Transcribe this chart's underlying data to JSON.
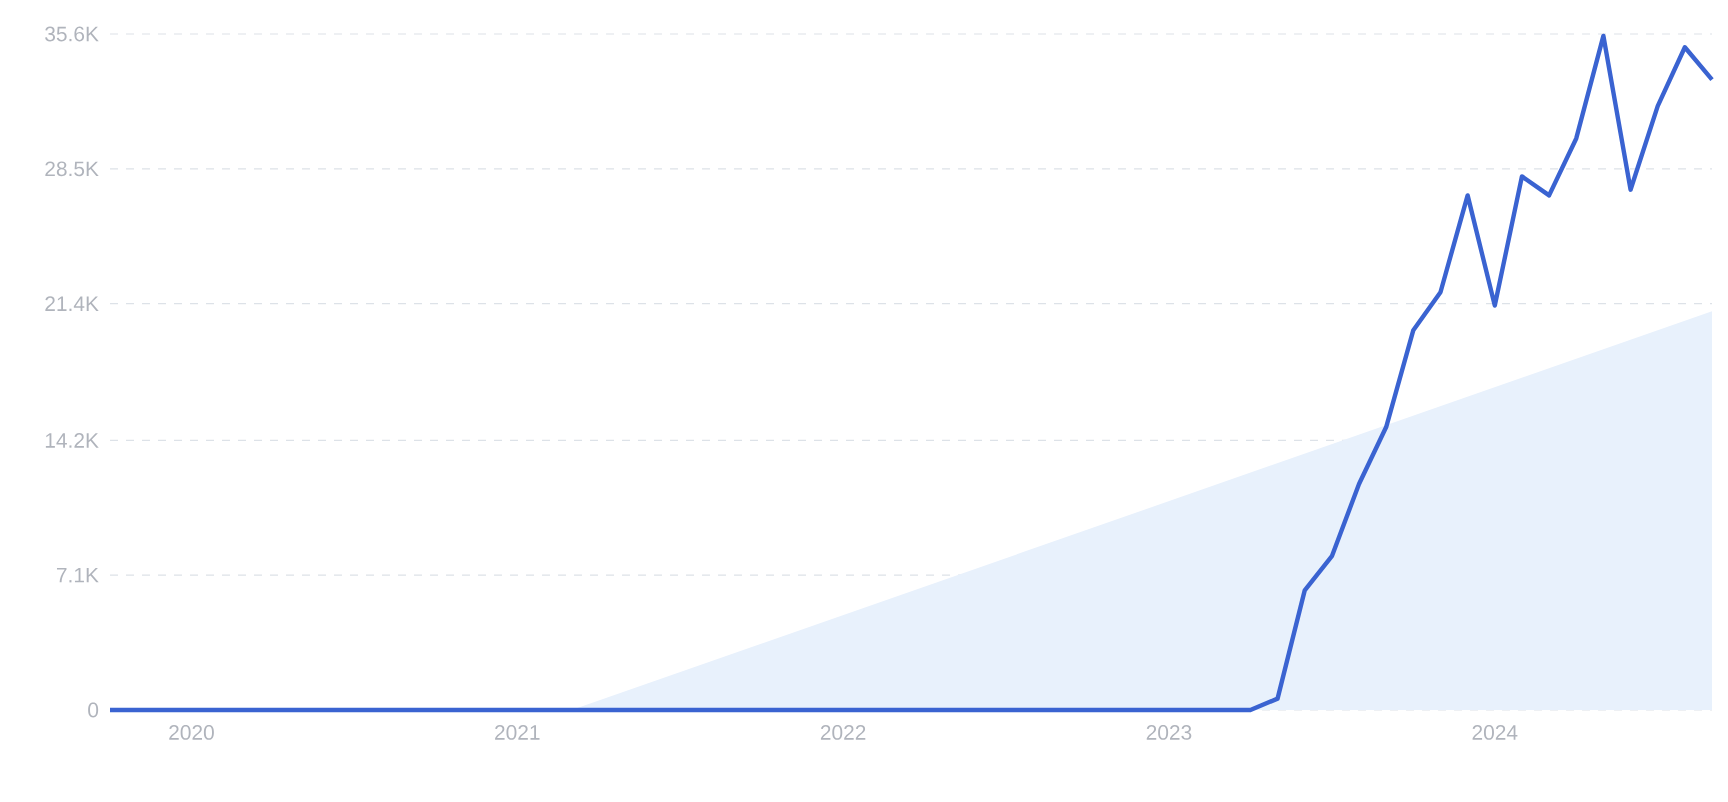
{
  "chart_data": {
    "type": "line",
    "series": [
      {
        "type": "area",
        "color": "#e8f1fc",
        "x": [
          "2021-03",
          "2024-09"
        ],
        "values": [
          0,
          21000
        ]
      },
      {
        "color": "#3a63d1",
        "x": [
          "2019-10",
          "2023-04",
          "2023-05",
          "2023-06",
          "2023-07",
          "2023-08",
          "2023-09",
          "2023-10",
          "2023-11",
          "2023-12",
          "2024-01",
          "2024-02",
          "2024-03",
          "2024-04",
          "2024-05",
          "2024-06",
          "2024-07",
          "2024-08",
          "2024-09"
        ],
        "values": [
          0,
          0,
          600,
          6300,
          8100,
          11900,
          14900,
          20000,
          22000,
          27100,
          21300,
          28100,
          27100,
          30100,
          35500,
          27400,
          31800,
          34900,
          33200
        ]
      }
    ],
    "xlim": [
      "2019-10",
      "2024-09"
    ],
    "xticks": [
      "2020",
      "2021",
      "2022",
      "2023",
      "2024"
    ],
    "ylim": [
      0,
      35600
    ],
    "yticks": [
      {
        "value": 0,
        "label": "0"
      },
      {
        "value": 7100,
        "label": "7.1K"
      },
      {
        "value": 14200,
        "label": "14.2K"
      },
      {
        "value": 21400,
        "label": "21.4K"
      },
      {
        "value": 28500,
        "label": "28.5K"
      },
      {
        "value": 35600,
        "label": "35.6K"
      }
    ],
    "grid": "y",
    "marker": "none",
    "line_style": "solid"
  }
}
